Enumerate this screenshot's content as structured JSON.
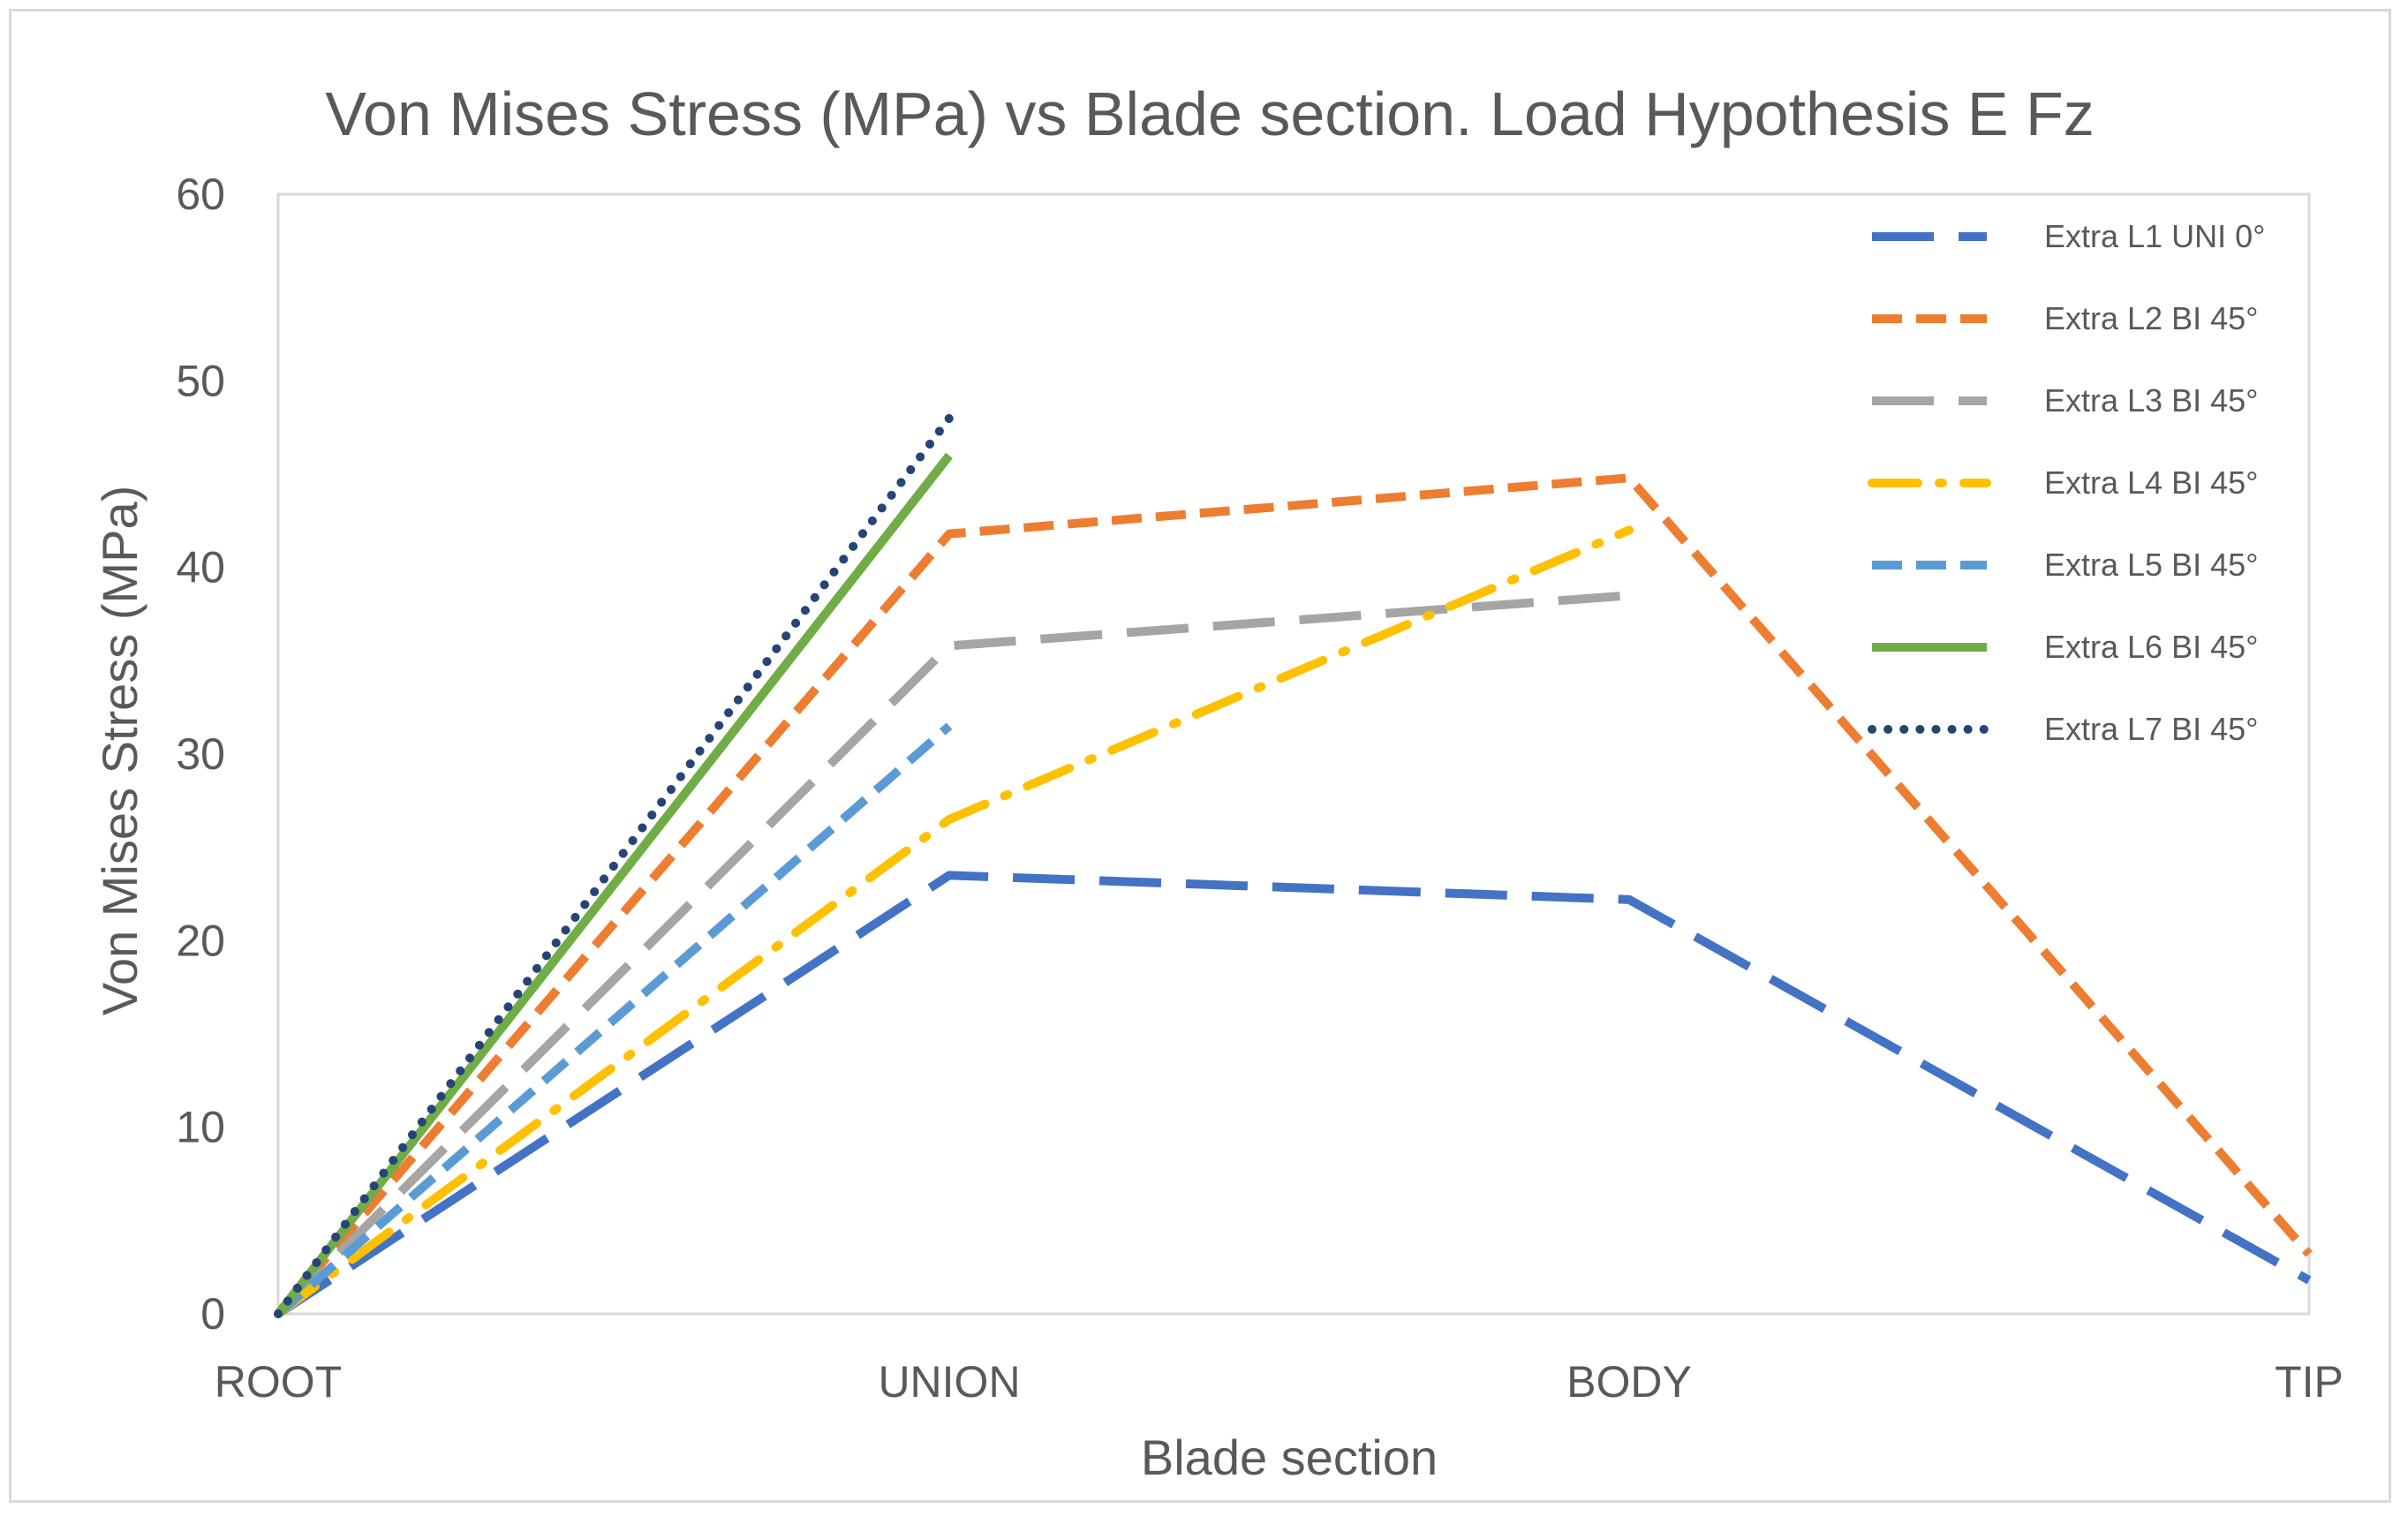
{
  "chart_data": {
    "type": "line",
    "title": "Von Mises Stress (MPa) vs Blade section. Load Hypothesis E Fz",
    "xlabel": "Blade section",
    "ylabel": "Von Mises Stress (MPa)",
    "categories": [
      "ROOT",
      "UNION",
      "BODY",
      "TIP"
    ],
    "ylim": [
      0,
      60
    ],
    "yticks": [
      0,
      10,
      20,
      30,
      40,
      50,
      60
    ],
    "grid": false,
    "legend_position": "right",
    "series": [
      {
        "name": "Extra L1 UNI 0°",
        "color": "#4472C4",
        "dash": "longdash",
        "values": [
          0,
          23.5,
          22.2,
          1.8
        ]
      },
      {
        "name": "Extra L2 BI 45°",
        "color": "#ED7D31",
        "dash": "dash",
        "values": [
          0,
          41.8,
          44.8,
          3.2
        ]
      },
      {
        "name": "Extra L3 BI 45°",
        "color": "#A5A5A5",
        "dash": "longdash",
        "values": [
          0,
          35.8,
          38.5,
          null
        ]
      },
      {
        "name": "Extra L4 BI 45°",
        "color": "#FFC000",
        "dash": "dashdot",
        "values": [
          0,
          26.5,
          42.0,
          null
        ]
      },
      {
        "name": "Extra L5 BI 45°",
        "color": "#5B9BD5",
        "dash": "dash",
        "values": [
          0,
          31.5,
          null,
          null
        ]
      },
      {
        "name": "Extra L6 BI 45°",
        "color": "#70AD47",
        "dash": "solid",
        "values": [
          0,
          46.0,
          null,
          null
        ]
      },
      {
        "name": "Extra L7 BI 45°",
        "color": "#264478",
        "dash": "dot",
        "values": [
          0,
          48.0,
          null,
          null
        ]
      }
    ]
  }
}
